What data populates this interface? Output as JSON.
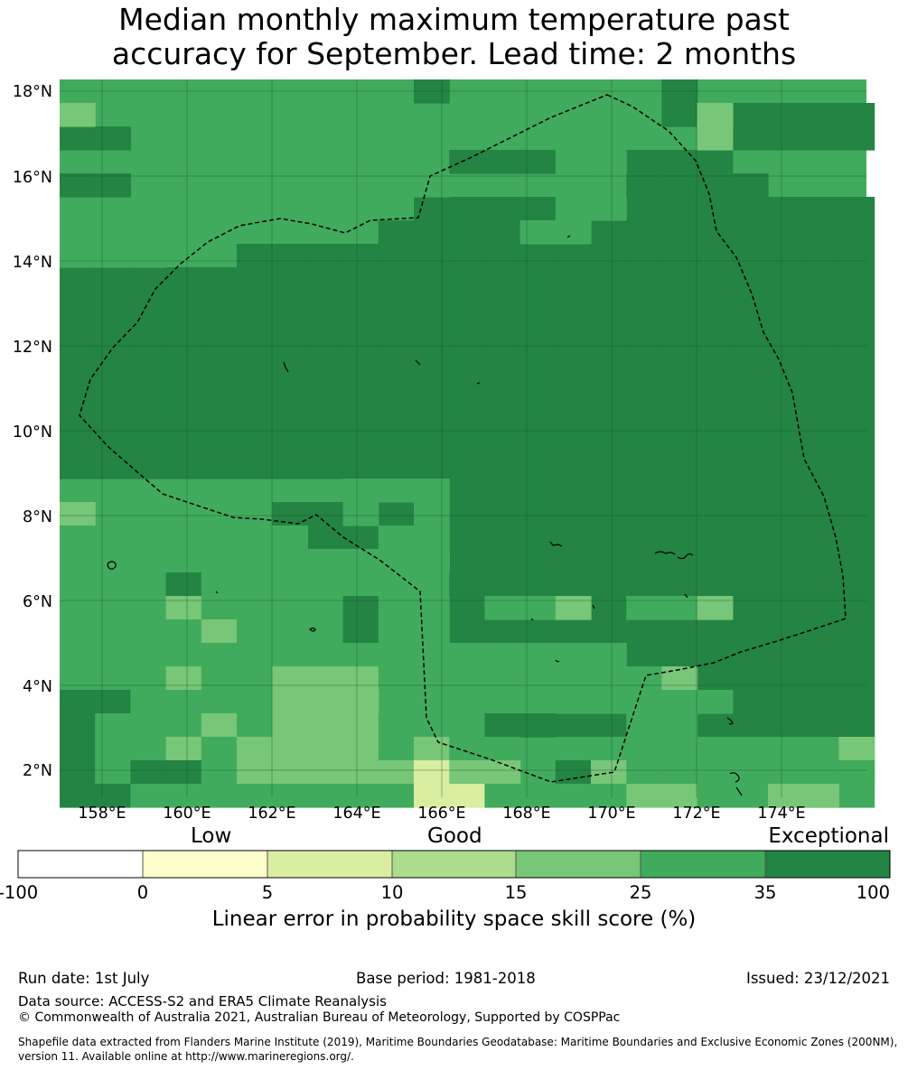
{
  "title_line1": "Median monthly maximum temperature past",
  "title_line2": "accuracy for September. Lead time: 2 months",
  "map": {
    "lon_range": [
      157,
      176
    ],
    "lat_range": [
      1.4,
      18.3
    ],
    "lon_ticks": [
      "158°E",
      "160°E",
      "162°E",
      "164°E",
      "166°E",
      "168°E",
      "170°E",
      "172°E",
      "174°E"
    ],
    "lat_ticks": [
      "2°N",
      "4°N",
      "6°N",
      "8°N",
      "10°N",
      "12°N",
      "14°N",
      "16°N",
      "18°N"
    ],
    "grid_lines": true,
    "eez_boundary": "dashed black line",
    "colors": {
      "bin_0_5": "#fefecc",
      "bin_5_10": "#d9eea0",
      "bin_10_15": "#acdc8c",
      "bin_15_25": "#78c678",
      "bin_25_35": "#41ab5d",
      "bin_35_100": "#238443"
    }
  },
  "colorbar": {
    "categories": [
      "Low",
      "Good",
      "Exceptional"
    ],
    "ticks": [
      "-100",
      "0",
      "5",
      "10",
      "15",
      "25",
      "35",
      "100"
    ],
    "colors": [
      "#ffffff",
      "#fefecc",
      "#d9eea0",
      "#acdc8c",
      "#78c678",
      "#41ab5d",
      "#238443"
    ],
    "label": "Linear error in probability space skill score (%)"
  },
  "footer": {
    "run_date": "Run date: 1st July",
    "base_period": "Base period: 1981-2018",
    "issued": "Issued: 23/12/2021",
    "data_source": "Data source: ACCESS-S2 and ERA5 Climate Reanalysis",
    "copyright": "© Commonwealth of Australia 2021, Australian Bureau of Meteorology, Supported by COSPPac",
    "shapefile_line1": "Shapefile data extracted from Flanders Marine Institute (2019), Maritime Boundaries Geodatabase: Maritime Boundaries and Exclusive Economic Zones (200NM),",
    "shapefile_line2": "version 11. Available online at http://www.marineregions.org/."
  }
}
